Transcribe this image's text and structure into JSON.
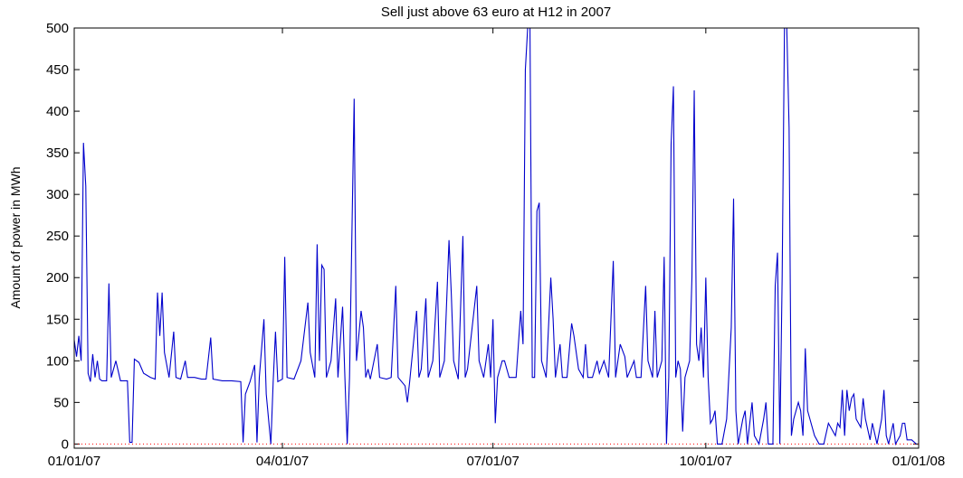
{
  "chart_data": {
    "type": "line",
    "title": "Sell just above 63 euro at H12 in 2007",
    "y_label": "Amount of power in MWh",
    "color": "#0000cc",
    "x": [
      0,
      1,
      2,
      3,
      4,
      5,
      6,
      7,
      8,
      9,
      10,
      11,
      12,
      14,
      15,
      16,
      18,
      20,
      23,
      24,
      25,
      26,
      28,
      30,
      33,
      35,
      36,
      37,
      38,
      39,
      41,
      43,
      44,
      46,
      48,
      49,
      52,
      55,
      57,
      59,
      60,
      64,
      68,
      72,
      73,
      74,
      76,
      78,
      79,
      80,
      82,
      83,
      85,
      86,
      87,
      88,
      90,
      91,
      92,
      95,
      98,
      101,
      102,
      104,
      105,
      106,
      107,
      108,
      109,
      111,
      113,
      114,
      116,
      117,
      118,
      119,
      121,
      122,
      124,
      125,
      126,
      127,
      128,
      131,
      132,
      135,
      137,
      139,
      140,
      143,
      144,
      145,
      148,
      149,
      150,
      152,
      153,
      155,
      157,
      158,
      160,
      162,
      163,
      164,
      166,
      168,
      169,
      170,
      172,
      174,
      175,
      177,
      179,
      180,
      181,
      182,
      183,
      185,
      186,
      188,
      191,
      193,
      194,
      195,
      196,
      197,
      198,
      199,
      200,
      201,
      202,
      204,
      206,
      207,
      208,
      210,
      211,
      213,
      215,
      216,
      218,
      220,
      221,
      222,
      224,
      226,
      227,
      229,
      231,
      233,
      234,
      236,
      238,
      239,
      242,
      243,
      245,
      247,
      248,
      250,
      251,
      252,
      254,
      255,
      256,
      257,
      258,
      259,
      260,
      261,
      262,
      263,
      264,
      266,
      267,
      268,
      269,
      270,
      271,
      272,
      273,
      274,
      275,
      276,
      277,
      278,
      280,
      282,
      284,
      285,
      286,
      287,
      289,
      290,
      291,
      293,
      294,
      296,
      298,
      299,
      300,
      302,
      303,
      304,
      305,
      306,
      307,
      308,
      309,
      310,
      311,
      313,
      314,
      315,
      316,
      317,
      318,
      320,
      322,
      324,
      326,
      327,
      329,
      330,
      331,
      332,
      333,
      334,
      335,
      336,
      337,
      338,
      340,
      341,
      342,
      344,
      345,
      347,
      349,
      350,
      351,
      352,
      354,
      355,
      357,
      358,
      359,
      360,
      362,
      364
    ],
    "values": [
      125,
      105,
      130,
      100,
      362,
      310,
      85,
      75,
      108,
      80,
      100,
      78,
      76,
      76,
      193,
      80,
      100,
      76,
      76,
      2,
      2,
      102,
      98,
      85,
      80,
      78,
      182,
      130,
      182,
      110,
      80,
      135,
      80,
      78,
      100,
      80,
      80,
      78,
      78,
      128,
      78,
      76,
      76,
      75,
      2,
      60,
      75,
      95,
      2,
      80,
      150,
      60,
      0,
      75,
      135,
      75,
      78,
      225,
      80,
      78,
      100,
      170,
      110,
      80,
      240,
      100,
      215,
      210,
      80,
      100,
      175,
      80,
      165,
      80,
      0,
      80,
      415,
      100,
      160,
      140,
      80,
      90,
      78,
      120,
      80,
      78,
      80,
      190,
      80,
      70,
      50,
      75,
      160,
      80,
      90,
      175,
      80,
      100,
      195,
      80,
      100,
      245,
      180,
      100,
      78,
      250,
      80,
      90,
      140,
      190,
      100,
      80,
      120,
      80,
      150,
      25,
      80,
      100,
      100,
      80,
      80,
      160,
      120,
      450,
      500,
      500,
      80,
      80,
      280,
      290,
      100,
      80,
      200,
      150,
      80,
      120,
      80,
      80,
      145,
      130,
      90,
      80,
      120,
      80,
      80,
      100,
      85,
      100,
      80,
      220,
      80,
      120,
      105,
      80,
      100,
      80,
      80,
      190,
      100,
      80,
      160,
      80,
      100,
      225,
      0,
      80,
      360,
      430,
      80,
      100,
      90,
      15,
      80,
      100,
      200,
      425,
      120,
      100,
      140,
      80,
      200,
      80,
      25,
      30,
      40,
      0,
      0,
      30,
      140,
      295,
      40,
      0,
      30,
      40,
      0,
      50,
      10,
      0,
      30,
      50,
      0,
      0,
      190,
      230,
      0,
      200,
      500,
      500,
      380,
      10,
      30,
      50,
      40,
      10,
      115,
      40,
      30,
      10,
      0,
      0,
      25,
      20,
      10,
      25,
      20,
      65,
      10,
      65,
      40,
      55,
      60,
      30,
      20,
      55,
      30,
      5,
      25,
      0,
      30,
      65,
      10,
      0,
      25,
      0,
      10,
      25,
      25,
      5,
      5,
      0
    ],
    "xlim": [
      0,
      365
    ],
    "xticks": [
      {
        "value": 0,
        "label": "01/01/07"
      },
      {
        "value": 90,
        "label": "04/01/07"
      },
      {
        "value": 181,
        "label": "07/01/07"
      },
      {
        "value": 273,
        "label": "10/01/07"
      },
      {
        "value": 365,
        "label": "01/01/08"
      }
    ],
    "ylim": [
      -5,
      500
    ],
    "yticks": [
      0,
      50,
      100,
      150,
      200,
      250,
      300,
      350,
      400,
      450,
      500
    ],
    "reference_line": {
      "value": 0,
      "color": "#ff0000"
    }
  }
}
